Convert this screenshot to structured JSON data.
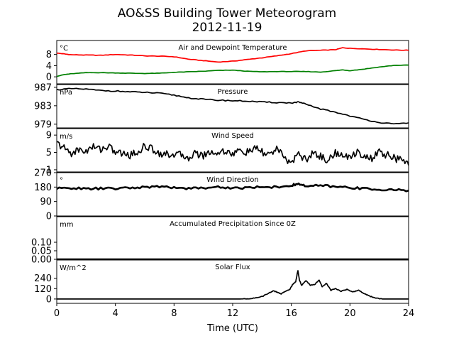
{
  "title": "AO&SS Building Tower Meteorogram",
  "subtitle": "2012-11-19",
  "xlabel": "Time (UTC)",
  "colors": {
    "temperature": "#ff0000",
    "dewpoint": "#008000",
    "default": "#000000"
  },
  "chart_data": {
    "type": "line",
    "x_axis": {
      "label": "Time (UTC)",
      "range": [
        0,
        24
      ],
      "ticks": [
        0,
        4,
        8,
        12,
        16,
        20,
        24
      ]
    },
    "panels": [
      {
        "id": "temperature",
        "title": "Air and Dewpoint Temperature",
        "unit": "°C",
        "ylim": [
          -2.5,
          13
        ],
        "yticks": [
          0,
          4,
          8
        ],
        "series": [
          {
            "key": "air",
            "color": "#ff0000",
            "x": [
              0,
              0.5,
              1,
              2,
              3,
              4,
              5,
              6,
              7,
              8,
              9,
              10,
              11,
              12,
              13,
              14,
              15,
              16,
              17,
              18,
              19,
              19.5,
              20,
              21,
              22,
              23,
              24
            ],
            "y": [
              8.5,
              8.2,
              7.9,
              7.8,
              7.7,
              8.0,
              7.8,
              7.5,
              7.4,
              7.2,
              6.3,
              5.8,
              5.3,
              5.6,
              6.2,
              6.8,
              7.5,
              8.3,
              9.3,
              9.5,
              9.7,
              10.4,
              10.2,
              10.0,
              9.8,
              9.6,
              9.5
            ]
          },
          {
            "key": "dewpoint",
            "color": "#008000",
            "x": [
              0,
              0.5,
              1,
              2,
              3,
              4,
              5,
              6,
              7,
              8,
              9,
              10,
              11,
              12,
              13,
              14,
              15,
              16,
              17,
              18,
              19,
              19.5,
              20,
              21,
              22,
              23,
              24
            ],
            "y": [
              0.2,
              0.8,
              1.1,
              1.5,
              1.5,
              1.4,
              1.3,
              1.2,
              1.3,
              1.6,
              1.8,
              2.0,
              2.3,
              2.4,
              2.0,
              1.8,
              1.9,
              1.9,
              1.9,
              1.7,
              2.2,
              2.5,
              2.2,
              2.8,
              3.5,
              4.1,
              4.2
            ]
          }
        ]
      },
      {
        "id": "pressure",
        "title": "Pressure",
        "unit": "hPa",
        "ylim": [
          978.2,
          987.6
        ],
        "yticks": [
          979,
          983,
          987
        ],
        "series": [
          {
            "key": "pressure",
            "color": "#000000",
            "x": [
              0,
              1,
              2,
              3,
              4,
              5,
              6,
              7,
              8,
              9,
              10,
              11,
              12,
              13,
              14,
              15,
              16,
              16.5,
              17,
              18,
              19,
              20,
              21,
              22,
              23,
              24
            ],
            "y": [
              986.5,
              986.7,
              986.6,
              986.3,
              986.2,
              986.0,
              985.9,
              985.7,
              985.3,
              984.7,
              984.4,
              984.2,
              984.1,
              984.0,
              983.8,
              983.7,
              983.6,
              983.8,
              983.3,
              982.3,
              981.6,
              980.8,
              980.0,
              979.4,
              979.0,
              979.3
            ]
          }
        ]
      },
      {
        "id": "wind-speed",
        "title": "Wind Speed",
        "unit": "m/s",
        "ylim": [
          0.5,
          10.5
        ],
        "yticks": [
          1,
          5,
          9
        ],
        "series": [
          {
            "key": "speed",
            "color": "#000000",
            "x": [
              0,
              0.5,
              1,
              1.5,
              2,
              2.5,
              3,
              3.5,
              4,
              4.5,
              5,
              5.5,
              6,
              6.5,
              7,
              7.5,
              8,
              8.5,
              9,
              9.5,
              10,
              10.5,
              11,
              11.5,
              12,
              12.5,
              13,
              13.5,
              14,
              14.5,
              15,
              15.5,
              16,
              16.5,
              17,
              17.5,
              18,
              18.5,
              19,
              19.5,
              20,
              20.5,
              21,
              21.5,
              22,
              22.5,
              23,
              23.5,
              24
            ],
            "y": [
              7.1,
              6.0,
              4.8,
              5.6,
              5.3,
              6.3,
              5.8,
              6.4,
              5.1,
              4.7,
              4.4,
              5.0,
              6.5,
              5.8,
              4.9,
              4.5,
              4.7,
              4.3,
              3.9,
              4.8,
              4.3,
              5.2,
              4.8,
              5.5,
              4.6,
              5.4,
              5.0,
              5.9,
              5.1,
              4.4,
              6.0,
              3.6,
              2.8,
              4.6,
              3.3,
              4.8,
              4.2,
              3.0,
              5.1,
              3.9,
              4.0,
              5.3,
              4.1,
              3.5,
              5.1,
              4.4,
              3.8,
              3.1,
              2.0
            ]
          }
        ]
      },
      {
        "id": "wind-direction",
        "title": "Wind Direction",
        "unit": "°",
        "ylim": [
          0,
          270
        ],
        "yticks": [
          0,
          90,
          180,
          270
        ],
        "series": [
          {
            "key": "direction",
            "color": "#000000",
            "x": [
              0,
              1,
              2,
              3,
              4,
              5,
              6,
              7,
              8,
              9,
              10,
              11,
              12,
              13,
              14,
              15,
              16,
              16.5,
              17,
              18,
              19,
              20,
              21,
              22,
              23,
              24
            ],
            "y": [
              170,
              175,
              168,
              172,
              170,
              175,
              180,
              182,
              178,
              172,
              175,
              180,
              174,
              176,
              182,
              180,
              190,
              200,
              185,
              190,
              182,
              178,
              170,
              165,
              162,
              158
            ]
          }
        ]
      },
      {
        "id": "precipitation",
        "title": "Accumulated Precipitation Since 0Z",
        "unit": "mm",
        "ylim": [
          0,
          0.25
        ],
        "yticks": [
          0.0,
          0.05,
          0.1
        ],
        "tick_format": 2,
        "series": [
          {
            "key": "precip",
            "color": "#000000",
            "x": [
              0,
              24
            ],
            "y": [
              0,
              0
            ]
          }
        ]
      },
      {
        "id": "solar-flux",
        "title": "Solar Flux",
        "unit": "W/m^2",
        "ylim": [
          -50,
          450
        ],
        "yticks": [
          0,
          120,
          240
        ],
        "series": [
          {
            "key": "solar",
            "color": "#000000",
            "x": [
              0,
              12.5,
              13,
              13.5,
              14,
              14.5,
              14.8,
              15,
              15.3,
              15.6,
              15.9,
              16.1,
              16.3,
              16.45,
              16.55,
              16.7,
              17,
              17.3,
              17.6,
              17.9,
              18.1,
              18.4,
              18.7,
              19,
              19.4,
              19.8,
              20.2,
              20.6,
              21,
              21.4,
              21.8,
              22.2,
              24
            ],
            "y": [
              0,
              0,
              3,
              10,
              28,
              70,
              95,
              80,
              60,
              90,
              110,
              170,
              200,
              330,
              220,
              160,
              210,
              160,
              170,
              220,
              140,
              180,
              100,
              120,
              90,
              110,
              80,
              100,
              60,
              30,
              10,
              0,
              0
            ]
          }
        ]
      }
    ]
  }
}
